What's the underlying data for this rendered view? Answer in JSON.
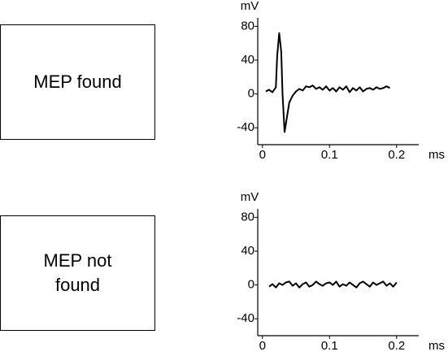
{
  "chart_data": [
    {
      "type": "line",
      "annotation": "MEP found",
      "ylabel": "mV",
      "xlabel": "ms",
      "xlim": [
        -0.007,
        0.233
      ],
      "ylim": [
        -60,
        90
      ],
      "xticks": [
        0,
        0.1,
        0.2
      ],
      "yticks": [
        80,
        40,
        0,
        -40
      ],
      "color": "#000000",
      "x": [
        0.005,
        0.01,
        0.015,
        0.02,
        0.022,
        0.025,
        0.028,
        0.03,
        0.033,
        0.036,
        0.04,
        0.045,
        0.05,
        0.055,
        0.06,
        0.065,
        0.07,
        0.075,
        0.08,
        0.085,
        0.09,
        0.095,
        0.1,
        0.105,
        0.11,
        0.115,
        0.12,
        0.125,
        0.13,
        0.135,
        0.14,
        0.145,
        0.15,
        0.155,
        0.16,
        0.165,
        0.17,
        0.175,
        0.18,
        0.185,
        0.19
      ],
      "values": [
        3,
        5,
        2,
        8,
        45,
        72,
        50,
        0,
        -45,
        -30,
        -10,
        -2,
        3,
        6,
        4,
        9,
        8,
        10,
        6,
        8,
        5,
        9,
        4,
        7,
        3,
        8,
        5,
        9,
        2,
        7,
        4,
        8,
        3,
        6,
        7,
        5,
        8,
        6,
        7,
        9,
        7
      ]
    },
    {
      "type": "line",
      "annotation": "MEP not found",
      "ylabel": "mV",
      "xlabel": "ms",
      "xlim": [
        -0.007,
        0.233
      ],
      "ylim": [
        -60,
        90
      ],
      "xticks": [
        0,
        0.1,
        0.2
      ],
      "yticks": [
        80,
        40,
        0,
        -40
      ],
      "color": "#000000",
      "x": [
        0.01,
        0.015,
        0.02,
        0.025,
        0.03,
        0.035,
        0.04,
        0.045,
        0.05,
        0.055,
        0.06,
        0.065,
        0.07,
        0.075,
        0.08,
        0.085,
        0.09,
        0.095,
        0.1,
        0.105,
        0.11,
        0.115,
        0.12,
        0.125,
        0.13,
        0.135,
        0.14,
        0.145,
        0.15,
        0.155,
        0.16,
        0.165,
        0.17,
        0.175,
        0.18,
        0.185,
        0.19,
        0.195,
        0.2
      ],
      "values": [
        -2,
        1,
        -3,
        2,
        0,
        3,
        4,
        -1,
        2,
        -3,
        1,
        3,
        -2,
        0,
        4,
        1,
        -1,
        2,
        3,
        0,
        4,
        -2,
        1,
        -1,
        3,
        0,
        -3,
        2,
        4,
        1,
        -2,
        3,
        0,
        2,
        4,
        -1,
        2,
        -2,
        3
      ]
    }
  ]
}
